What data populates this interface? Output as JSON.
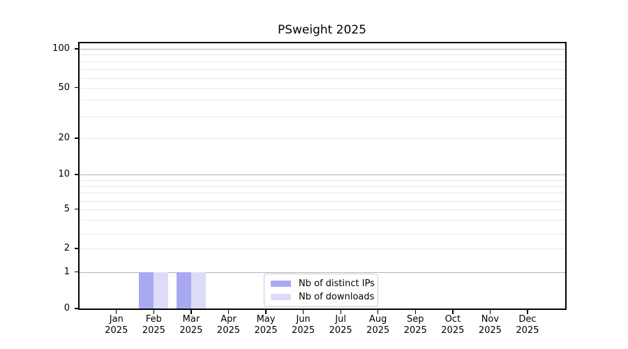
{
  "chart_data": {
    "type": "bar",
    "title": "PSweight 2025",
    "categories": [
      "Jan\n2025",
      "Feb\n2025",
      "Mar\n2025",
      "Apr\n2025",
      "May\n2025",
      "Jun\n2025",
      "Jul\n2025",
      "Aug\n2025",
      "Sep\n2025",
      "Oct\n2025",
      "Nov\n2025",
      "Dec\n2025"
    ],
    "series": [
      {
        "name": "Nb of distinct IPs",
        "color": "#a9a9f3",
        "values": [
          0,
          1,
          1,
          0,
          0,
          0,
          0,
          0,
          0,
          0,
          0,
          0
        ]
      },
      {
        "name": "Nb of downloads",
        "color": "#dcdcf9",
        "values": [
          0,
          1,
          1,
          0,
          0,
          0,
          0,
          0,
          0,
          0,
          0,
          0
        ]
      }
    ],
    "xlabel": "",
    "ylabel": "",
    "yscale": "symlog (log above 1, linear 0-1)",
    "ytick_labels": [
      "100",
      "50",
      "20",
      "10",
      "5",
      "2",
      "1",
      "0"
    ],
    "ylim": [
      0,
      112
    ],
    "grid": "horizontal major+minor",
    "legend_position": "inside bottom-center",
    "colors": {
      "background": "#ffffff",
      "grid_major": "#b3b3b3",
      "grid_minor": "#e7e7e7",
      "spine": "#000000",
      "text": "#000000"
    }
  }
}
